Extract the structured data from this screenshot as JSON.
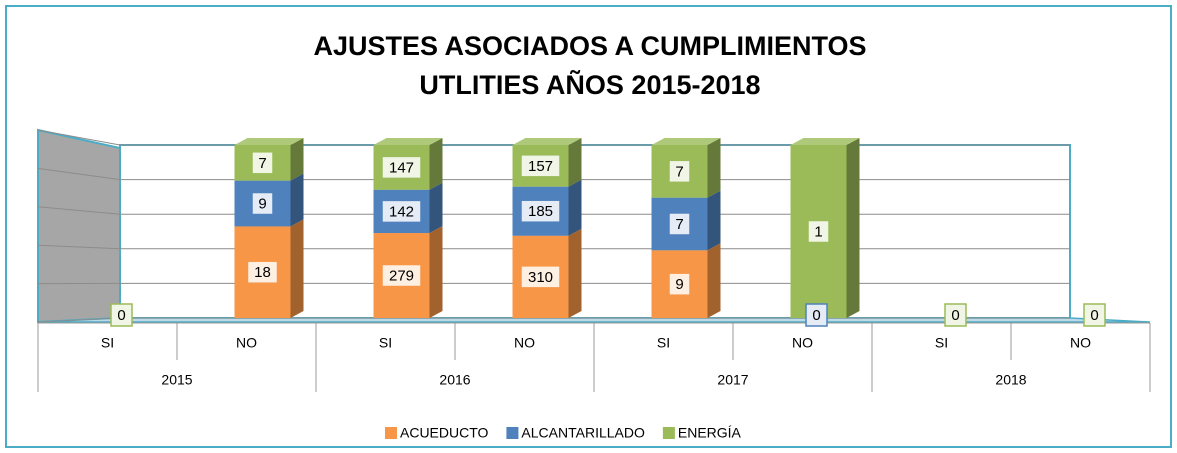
{
  "chart_data": {
    "type": "bar",
    "stacked": "percent",
    "title": "AJUSTES ASOCIADOS A CUMPLIMIENTOS",
    "subtitle": "UTLITIES AÑOS 2015-2018",
    "categories": [
      "SI",
      "NO",
      "SI",
      "NO",
      "SI",
      "NO",
      "SI",
      "NO"
    ],
    "groups": [
      "2015",
      "2016",
      "2017",
      "2018"
    ],
    "series": [
      {
        "name": "ACUEDUCTO",
        "color": "#f79646",
        "values": [
          null,
          18,
          279,
          310,
          9,
          null,
          null,
          null
        ]
      },
      {
        "name": "ALCANTARILLADO",
        "color": "#4f81bd",
        "values": [
          null,
          9,
          142,
          185,
          7,
          0,
          null,
          null
        ]
      },
      {
        "name": "ENERGÍA",
        "color": "#9bbb59",
        "values": [
          0,
          7,
          147,
          157,
          7,
          1,
          0,
          0
        ]
      }
    ],
    "ylim": [
      0,
      100
    ],
    "yticks": [
      0,
      20,
      40,
      60,
      80,
      100
    ],
    "grid": true,
    "legend": "bottom"
  }
}
